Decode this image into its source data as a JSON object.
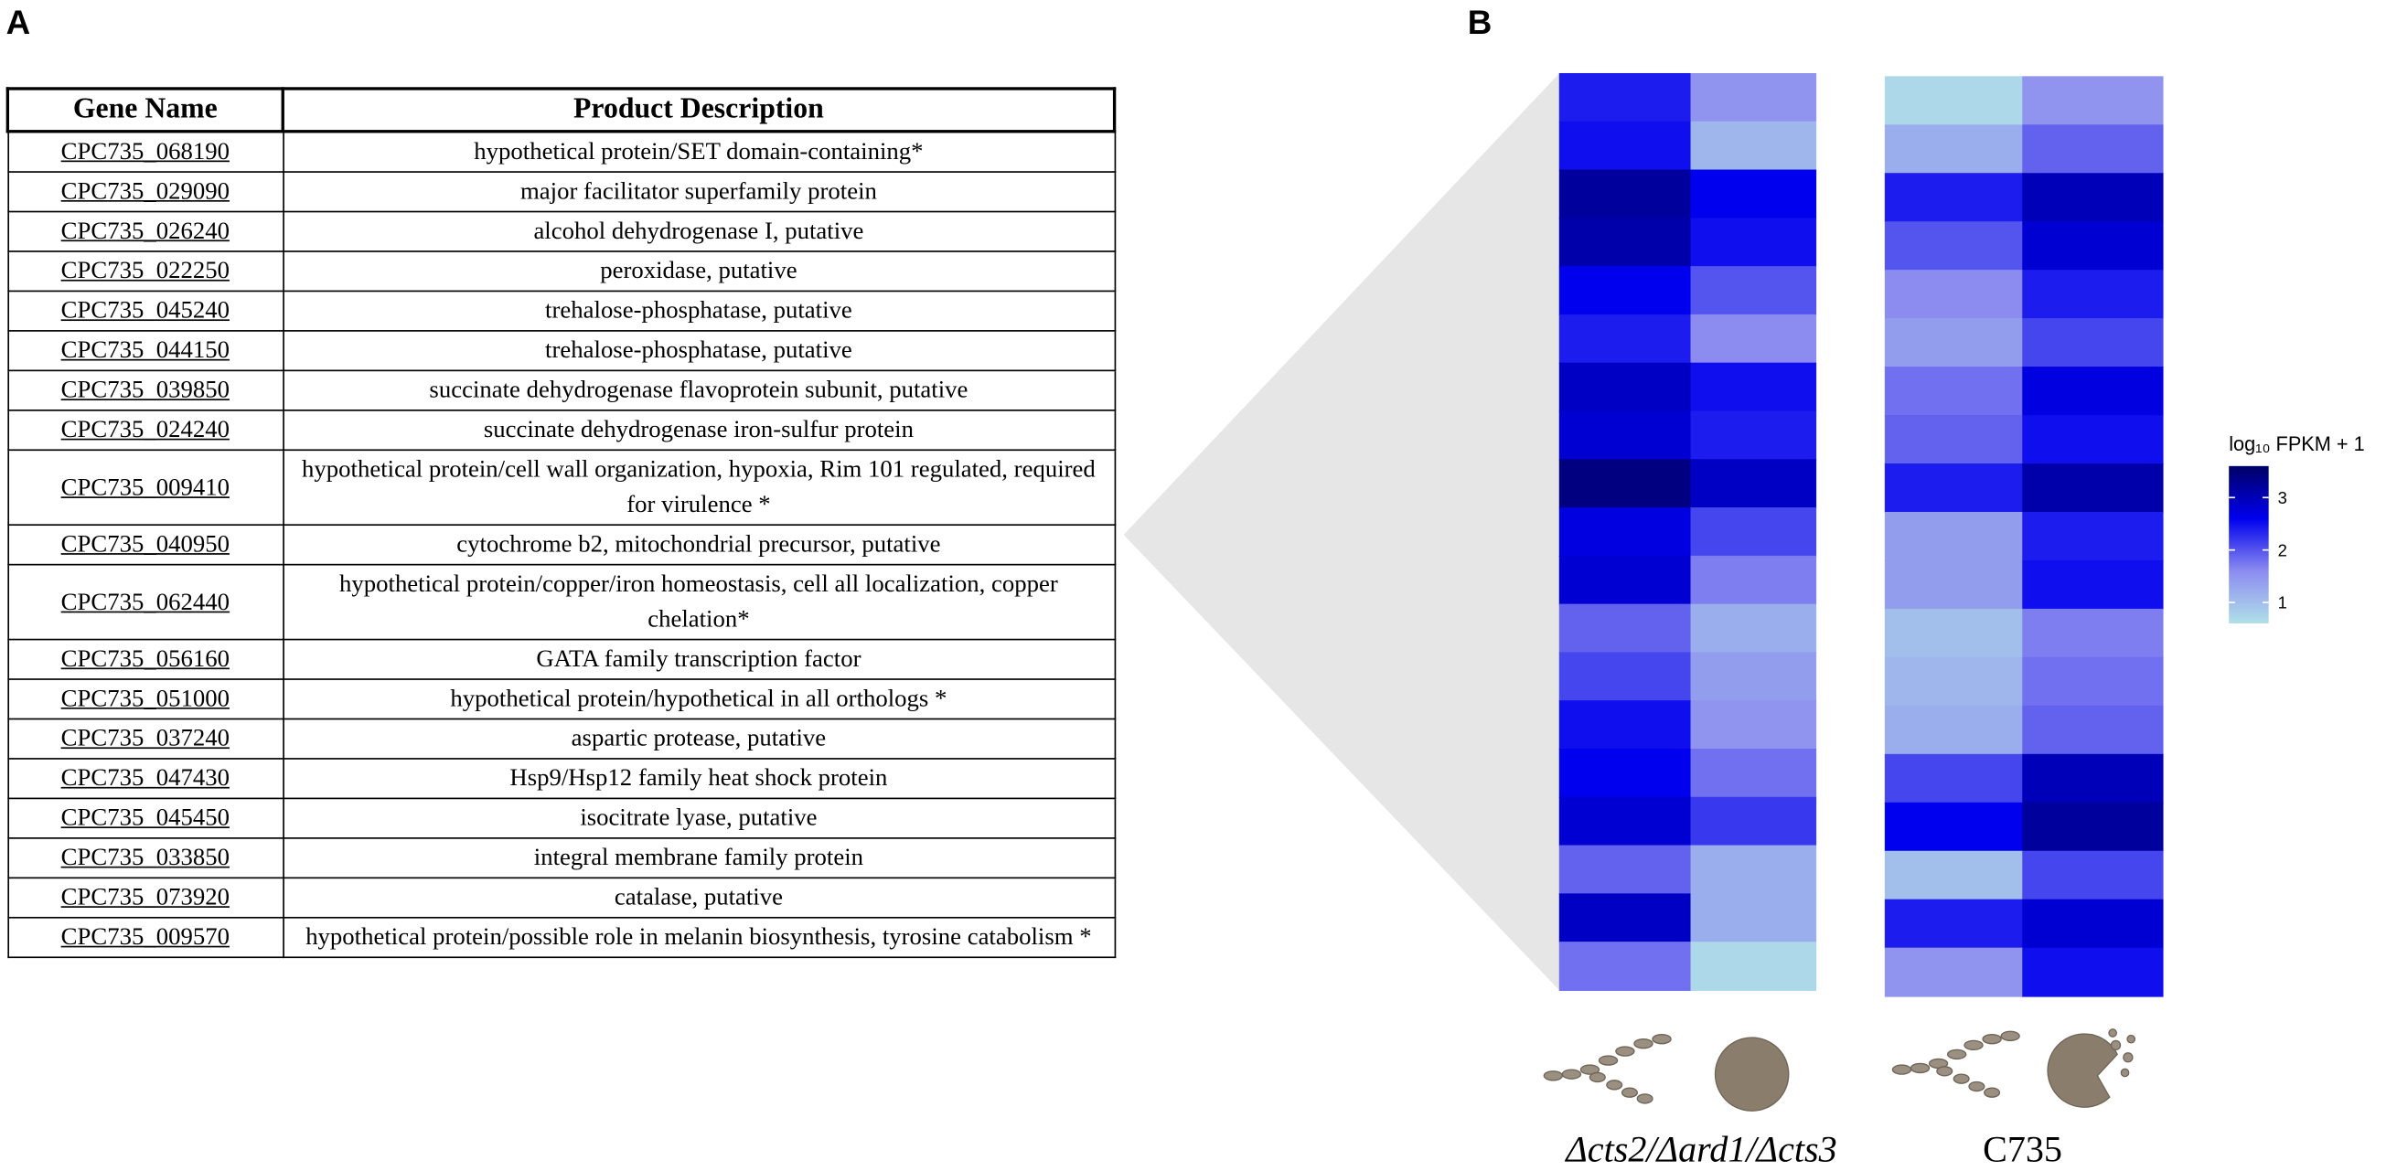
{
  "panel_labels": [
    "A",
    "B"
  ],
  "table": {
    "headers": [
      "Gene Name",
      "Product Description"
    ],
    "rows": [
      [
        "CPC735_068190",
        "hypothetical protein/SET domain-containing*"
      ],
      [
        "CPC735_029090",
        "major facilitator superfamily protein"
      ],
      [
        "CPC735_026240",
        "alcohol dehydrogenase I, putative"
      ],
      [
        "CPC735_022250",
        "peroxidase, putative"
      ],
      [
        "CPC735_045240",
        "trehalose-phosphatase, putative"
      ],
      [
        "CPC735_044150",
        "trehalose-phosphatase, putative"
      ],
      [
        "CPC735_039850",
        "succinate dehydrogenase flavoprotein subunit, putative"
      ],
      [
        "CPC735_024240",
        "succinate dehydrogenase iron-sulfur protein"
      ],
      [
        "CPC735_009410",
        "hypothetical protein/cell wall organization, hypoxia, Rim 101 regulated, required for virulence *"
      ],
      [
        "CPC735_040950",
        "cytochrome b2, mitochondrial precursor, putative"
      ],
      [
        "CPC735_062440",
        "hypothetical protein/copper/iron homeostasis, cell all localization, copper chelation*"
      ],
      [
        "CPC735_056160",
        "GATA family transcription factor"
      ],
      [
        "CPC735_051000",
        "hypothetical protein/hypothetical in all orthologs *"
      ],
      [
        "CPC735_037240",
        "aspartic protease, putative"
      ],
      [
        "CPC735_047430",
        "Hsp9/Hsp12 family heat shock protein"
      ],
      [
        "CPC735_045450",
        "isocitrate lyase, putative"
      ],
      [
        "CPC735_033850",
        "integral membrane family protein"
      ],
      [
        "CPC735_073920",
        "catalase, putative"
      ],
      [
        "CPC735_009570",
        "hypothetical protein/possible role in melanin biosynthesis, tyrosine catabolism *"
      ]
    ]
  },
  "chart_data": {
    "type": "heatmap",
    "groups": [
      "Δcts2/Δard1/Δcts3",
      "C735"
    ],
    "legend_title": "log₁₀ FPKM + 1",
    "colors": [
      "#b0e0e8",
      "#8c8cf0",
      "#0000ee",
      "#000066"
    ],
    "zlim": [
      0.6,
      3.6
    ],
    "zticks": [
      1,
      2,
      3
    ],
    "values": [
      [
        2.4,
        1.5,
        0.7,
        1.5
      ],
      [
        2.5,
        1.1,
        1.2,
        1.9
      ],
      [
        3.2,
        2.6,
        2.4,
        3.0
      ],
      [
        3.1,
        2.5,
        2.0,
        2.8
      ],
      [
        2.6,
        2.0,
        1.6,
        2.4
      ],
      [
        2.4,
        1.6,
        1.4,
        2.1
      ],
      [
        2.9,
        2.5,
        1.8,
        2.7
      ],
      [
        2.8,
        2.4,
        1.9,
        2.5
      ],
      [
        3.4,
        2.9,
        2.4,
        3.1
      ],
      [
        2.7,
        2.1,
        1.4,
        2.4
      ],
      [
        2.8,
        1.7,
        1.4,
        2.5
      ],
      [
        1.9,
        1.2,
        1.0,
        1.7
      ],
      [
        2.1,
        1.4,
        1.1,
        1.8
      ],
      [
        2.5,
        1.5,
        1.2,
        1.9
      ],
      [
        2.6,
        1.8,
        2.1,
        3.0
      ],
      [
        2.8,
        2.2,
        2.6,
        3.2
      ],
      [
        1.9,
        1.2,
        1.0,
        2.1
      ],
      [
        2.9,
        1.2,
        2.4,
        2.8
      ],
      [
        1.8,
        0.7,
        1.5,
        2.5
      ]
    ]
  }
}
